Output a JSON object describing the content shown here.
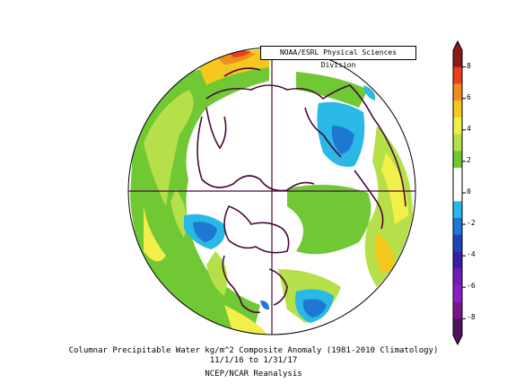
{
  "credit": "NOAA/ESRL Physical Sciences Division",
  "caption": {
    "line1": "Columnar Precipitable Water kg/m^2 Composite Anomaly (1981-2010 Climatology)",
    "line2": "11/1/16  to 1/31/17",
    "line3": "NCEP/NCAR Reanalysis"
  },
  "colorbar": {
    "labels": [
      "8",
      "6",
      "4",
      "2",
      "0",
      "-2",
      "-4",
      "-6",
      "-8"
    ],
    "colors": [
      "#8b1a1a",
      "#e8401c",
      "#f08c1e",
      "#f5c820",
      "#f2ee4a",
      "#b6e04a",
      "#6fc834",
      "#ffffff",
      "#ffffff",
      "#2ab8e6",
      "#1e78d2",
      "#1e46b4",
      "#3c1ea0",
      "#6e1eb4",
      "#8c1ec8",
      "#7a148c",
      "#50145a"
    ]
  },
  "colors": {
    "coast": "#4a0a3a",
    "frame": "#000000"
  }
}
